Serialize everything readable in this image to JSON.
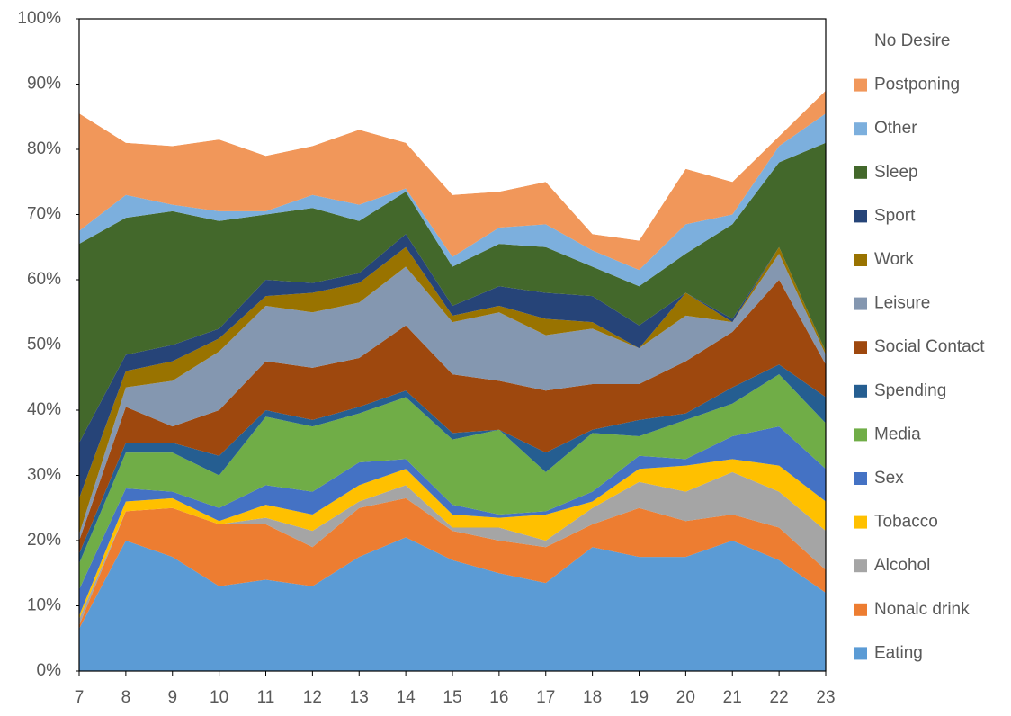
{
  "chart_data": {
    "type": "stacked-area",
    "x": [
      7,
      8,
      9,
      10,
      11,
      12,
      13,
      14,
      15,
      16,
      17,
      18,
      19,
      20,
      21,
      22,
      23
    ],
    "xlim": [
      7,
      23
    ],
    "xticks": [
      7,
      8,
      9,
      10,
      11,
      12,
      13,
      14,
      15,
      16,
      17,
      18,
      19,
      20,
      21,
      22,
      23
    ],
    "ylim": [
      0,
      100
    ],
    "yticks": [
      {
        "value": 0,
        "label": "0%"
      },
      {
        "value": 10,
        "label": "10%"
      },
      {
        "value": 20,
        "label": "20%"
      },
      {
        "value": 30,
        "label": "30%"
      },
      {
        "value": 40,
        "label": "40%"
      },
      {
        "value": 50,
        "label": "50%"
      },
      {
        "value": 60,
        "label": "60%"
      },
      {
        "value": 70,
        "label": "70%"
      },
      {
        "value": 80,
        "label": "80%"
      },
      {
        "value": 90,
        "label": "90%"
      },
      {
        "value": 100,
        "label": "100%"
      }
    ],
    "grid": false,
    "legend": "right",
    "series": [
      {
        "name": "Eating",
        "color": "#5b9bd5",
        "values": [
          6.5,
          20,
          17.5,
          13,
          14,
          13,
          17.5,
          20.5,
          17,
          15,
          13.5,
          19,
          17.5,
          17.5,
          20,
          17,
          12
        ]
      },
      {
        "name": "Nonalc drink",
        "color": "#ed7d31",
        "values": [
          0.5,
          4.5,
          7.5,
          9.5,
          8.5,
          6,
          7.5,
          6,
          4.5,
          5,
          5.5,
          3.5,
          7.5,
          5.5,
          4,
          5,
          3.5
        ]
      },
      {
        "name": "Alcohol",
        "color": "#a5a5a5",
        "values": [
          1,
          0,
          0,
          0,
          1,
          2.5,
          1,
          2,
          0.5,
          2,
          1,
          2.5,
          4,
          4.5,
          6.5,
          5.5,
          6
        ]
      },
      {
        "name": "Tobacco",
        "color": "#ffc000",
        "values": [
          0.5,
          1.5,
          1.5,
          0.5,
          2,
          2.5,
          2.5,
          2.5,
          2,
          1.5,
          4,
          1,
          2,
          4,
          2,
          4,
          4.5
        ]
      },
      {
        "name": "Sex",
        "color": "#4472c4",
        "values": [
          4,
          2,
          1,
          2,
          3,
          3.5,
          3.5,
          1.5,
          1.5,
          0.5,
          0.5,
          1.5,
          2,
          1,
          3.5,
          6,
          5
        ]
      },
      {
        "name": "Media",
        "color": "#70ad47",
        "values": [
          4,
          5.5,
          6,
          5,
          10.5,
          10,
          7.5,
          9.5,
          10,
          13,
          6,
          9,
          3,
          6,
          5,
          8,
          7
        ]
      },
      {
        "name": "Spending",
        "color": "#255e91",
        "values": [
          1.5,
          1.5,
          1.5,
          3,
          1,
          1,
          1,
          1,
          1,
          0,
          3,
          0.5,
          2.5,
          1,
          2.5,
          1.5,
          4
        ]
      },
      {
        "name": "Social Contact",
        "color": "#9e480e",
        "values": [
          2,
          5.5,
          2.5,
          7,
          7.5,
          8,
          7.5,
          10,
          9,
          7.5,
          9.5,
          7,
          5.5,
          8,
          8.5,
          13,
          5
        ]
      },
      {
        "name": "Leisure",
        "color": "#8497b0",
        "values": [
          1,
          3,
          7,
          9,
          8.5,
          8.5,
          8.5,
          9,
          8,
          10.5,
          8.5,
          8.5,
          5.5,
          7,
          1.5,
          4,
          1.5
        ]
      },
      {
        "name": "Work",
        "color": "#997300",
        "values": [
          5.5,
          2.5,
          3,
          2,
          1.5,
          3,
          3,
          3,
          1,
          1,
          2.5,
          1,
          0,
          3.5,
          0,
          1,
          0.5
        ]
      },
      {
        "name": "Sport",
        "color": "#264478",
        "values": [
          8.5,
          2.5,
          2.5,
          1.5,
          2.5,
          1.5,
          1.5,
          2,
          1.5,
          3,
          4,
          4,
          3.5,
          0,
          0.5,
          0,
          0
        ]
      },
      {
        "name": "Sleep",
        "color": "#43682b",
        "values": [
          30.5,
          21,
          20.5,
          16.5,
          10,
          11.5,
          8,
          6.5,
          6,
          6.5,
          7,
          4.5,
          6,
          6,
          14.5,
          13,
          32
        ]
      },
      {
        "name": "Other",
        "color": "#7cafdd",
        "values": [
          2,
          3.5,
          1,
          1.5,
          0.5,
          2,
          2.5,
          0.5,
          1.5,
          2.5,
          3.5,
          2.5,
          2.5,
          4.5,
          1.5,
          2.5,
          4.5
        ]
      },
      {
        "name": "Postponing",
        "color": "#f1975a",
        "values": [
          18,
          8,
          9,
          11,
          8.5,
          7.5,
          11.5,
          7,
          9.5,
          5.5,
          6.5,
          2.5,
          4.5,
          8.5,
          5,
          1.5,
          3.5
        ]
      },
      {
        "name": "No Desire",
        "color": "#ffffff",
        "values": [
          14.5,
          19,
          19.5,
          18.5,
          21,
          19.5,
          17,
          19,
          27,
          26.5,
          25,
          33,
          34,
          23,
          25,
          18,
          11
        ]
      }
    ]
  }
}
